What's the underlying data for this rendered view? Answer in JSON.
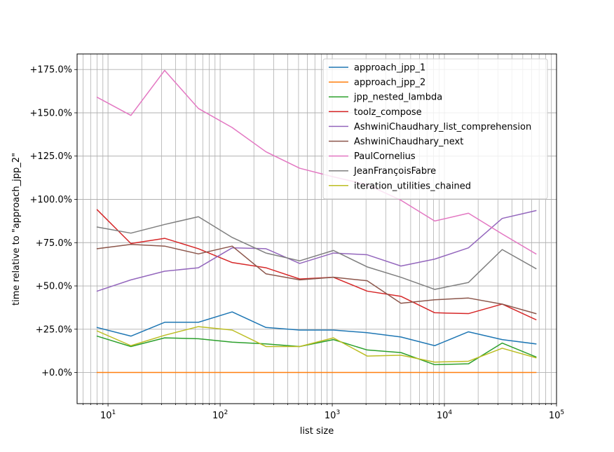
{
  "chart_data": {
    "type": "line",
    "xlabel": "list size",
    "ylabel": "time relative to \"approach_jpp_2\"",
    "xscale": "log",
    "xlim": [
      5.3,
      100000
    ],
    "ylim": [
      -0.18,
      1.84
    ],
    "grid": "major+minor",
    "legend_position": "top-right",
    "x_tick_labels": [
      {
        "value": 10,
        "base": "10",
        "exp": "1"
      },
      {
        "value": 100,
        "base": "10",
        "exp": "2"
      },
      {
        "value": 1000,
        "base": "10",
        "exp": "3"
      },
      {
        "value": 10000,
        "base": "10",
        "exp": "4"
      },
      {
        "value": 100000,
        "base": "10",
        "exp": "5"
      }
    ],
    "y_ticks": [
      {
        "value": 0.0,
        "label": "+0.0%"
      },
      {
        "value": 0.25,
        "label": "+25.0%"
      },
      {
        "value": 0.5,
        "label": "+50.0%"
      },
      {
        "value": 0.75,
        "label": "+75.0%"
      },
      {
        "value": 1.0,
        "label": "+100.0%"
      },
      {
        "value": 1.25,
        "label": "+125.0%"
      },
      {
        "value": 1.5,
        "label": "+150.0%"
      },
      {
        "value": 1.75,
        "label": "+175.0%"
      }
    ],
    "x": [
      8,
      16,
      32,
      64,
      128,
      256,
      512,
      1024,
      2048,
      4096,
      8192,
      16384,
      32768,
      65536
    ],
    "series": [
      {
        "name": "approach_jpp_1",
        "color": "#1f77b4",
        "values": [
          0.26,
          0.21,
          0.29,
          0.29,
          0.35,
          0.26,
          0.245,
          0.245,
          0.23,
          0.205,
          0.155,
          0.235,
          0.19,
          0.165
        ]
      },
      {
        "name": "approach_jpp_2",
        "color": "#ff7f0e",
        "values": [
          0,
          0,
          0,
          0,
          0,
          0,
          0,
          0,
          0,
          0,
          0,
          0,
          0,
          0
        ]
      },
      {
        "name": "jpp_nested_lambda",
        "color": "#2ca02c",
        "values": [
          0.21,
          0.15,
          0.2,
          0.195,
          0.175,
          0.165,
          0.15,
          0.19,
          0.13,
          0.115,
          0.045,
          0.05,
          0.17,
          0.09
        ]
      },
      {
        "name": "toolz_compose",
        "color": "#d62728",
        "values": [
          0.94,
          0.745,
          0.775,
          0.715,
          0.635,
          0.605,
          0.54,
          0.55,
          0.47,
          0.44,
          0.345,
          0.34,
          0.395,
          0.305
        ]
      },
      {
        "name": "AshwiniChaudhary_list_comprehension",
        "color": "#9467bd",
        "values": [
          0.47,
          0.535,
          0.585,
          0.605,
          0.72,
          0.715,
          0.63,
          0.69,
          0.68,
          0.615,
          0.655,
          0.72,
          0.89,
          0.935
        ]
      },
      {
        "name": "AshwiniChaudhary_next",
        "color": "#8c564b",
        "values": [
          0.715,
          0.74,
          0.73,
          0.685,
          0.73,
          0.57,
          0.535,
          0.55,
          0.53,
          0.4,
          0.42,
          0.43,
          0.395,
          0.34
        ]
      },
      {
        "name": "PaulCornelius",
        "color": "#e377c2",
        "values": [
          1.59,
          1.485,
          1.745,
          1.525,
          1.415,
          1.275,
          1.18,
          1.13,
          1.085,
          0.995,
          0.875,
          0.92,
          0.8,
          0.685
        ]
      },
      {
        "name": "JeanFrançoisFabre",
        "color": "#7f7f7f",
        "values": [
          0.84,
          0.805,
          0.855,
          0.9,
          0.78,
          0.69,
          0.645,
          0.705,
          0.61,
          0.55,
          0.48,
          0.52,
          0.71,
          0.6
        ]
      },
      {
        "name": "iteration_utilities_chained",
        "color": "#bcbd22",
        "values": [
          0.24,
          0.155,
          0.215,
          0.265,
          0.245,
          0.15,
          0.15,
          0.2,
          0.095,
          0.1,
          0.06,
          0.065,
          0.14,
          0.085
        ]
      }
    ]
  }
}
